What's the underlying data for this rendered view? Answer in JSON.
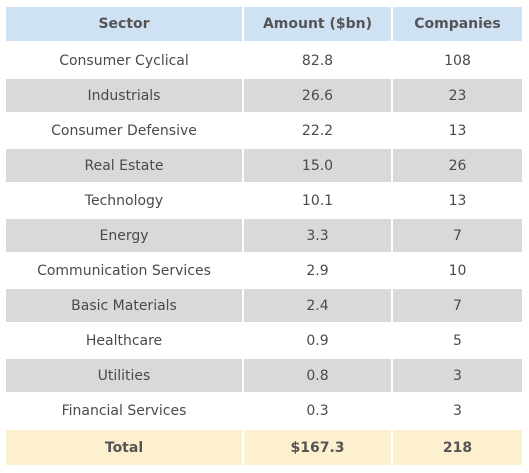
{
  "table": {
    "headers": [
      "Sector",
      "Amount ($bn)",
      "Companies"
    ],
    "rows": [
      [
        "Consumer Cyclical",
        "82.8",
        "108"
      ],
      [
        "Industrials",
        "26.6",
        "23"
      ],
      [
        "Consumer Defensive",
        "22.2",
        "13"
      ],
      [
        "Real Estate",
        "15.0",
        "26"
      ],
      [
        "Technology",
        "10.1",
        "13"
      ],
      [
        "Energy",
        "3.3",
        "7"
      ],
      [
        "Communication Services",
        "2.9",
        "10"
      ],
      [
        "Basic Materials",
        "2.4",
        "7"
      ],
      [
        "Healthcare",
        "0.9",
        "5"
      ],
      [
        "Utilities",
        "0.8",
        "3"
      ],
      [
        "Financial Services",
        "0.3",
        "3"
      ]
    ],
    "total": [
      "Total",
      "$167.3",
      "218"
    ]
  },
  "colors": {
    "header_bg": "#cfe2f3",
    "stripe_bg": "#d9d9d9",
    "total_bg": "#fdf0cf"
  }
}
